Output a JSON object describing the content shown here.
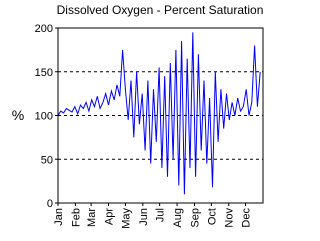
{
  "chart_data": {
    "type": "line",
    "title": "Dissolved Oxygen - Percent Saturation",
    "y_label": "%",
    "x": [
      1,
      6,
      11,
      16,
      21,
      26,
      31,
      36,
      41,
      46,
      51,
      56,
      61,
      66,
      71,
      76,
      81,
      86,
      91,
      96,
      101,
      106,
      111,
      116,
      121,
      126,
      131,
      136,
      141,
      146,
      151,
      156,
      161,
      166,
      171,
      176,
      181,
      186,
      191,
      196,
      201,
      206,
      211,
      216,
      221,
      226,
      231,
      236,
      241,
      246,
      251,
      256,
      261,
      266,
      271,
      276,
      281,
      286,
      291,
      296,
      301,
      306,
      311,
      316,
      321,
      326,
      331,
      336,
      341,
      346,
      351,
      356,
      361
    ],
    "series": [
      {
        "color": "#0000ff",
        "values": [
          100,
          105,
          103,
          108,
          106,
          104,
          110,
          102,
          112,
          108,
          115,
          105,
          118,
          110,
          122,
          108,
          115,
          125,
          112,
          128,
          118,
          135,
          122,
          175,
          130,
          95,
          140,
          75,
          150,
          90,
          125,
          60,
          140,
          45,
          130,
          70,
          155,
          40,
          145,
          30,
          160,
          50,
          175,
          20,
          185,
          10,
          165,
          40,
          195,
          30,
          170,
          60,
          140,
          45,
          120,
          18,
          150,
          70,
          130,
          85,
          125,
          95,
          115,
          100,
          120,
          105,
          110,
          130,
          100,
          115,
          180,
          110,
          150
        ]
      }
    ],
    "xlim": [
      1,
      366
    ],
    "xticks": [
      {
        "value": 1,
        "label": "Jan"
      },
      {
        "value": 32,
        "label": "Feb"
      },
      {
        "value": 60,
        "label": "Mar"
      },
      {
        "value": 91,
        "label": "Apr"
      },
      {
        "value": 121,
        "label": "May"
      },
      {
        "value": 152,
        "label": "Jun"
      },
      {
        "value": 182,
        "label": "Jul"
      },
      {
        "value": 213,
        "label": "Aug"
      },
      {
        "value": 244,
        "label": "Sep"
      },
      {
        "value": 274,
        "label": "Oct"
      },
      {
        "value": 305,
        "label": "Nov"
      },
      {
        "value": 335,
        "label": "Dec"
      }
    ],
    "ylim": [
      0,
      200
    ],
    "yticks": [
      0,
      50,
      100,
      150,
      200
    ],
    "grid": true
  }
}
